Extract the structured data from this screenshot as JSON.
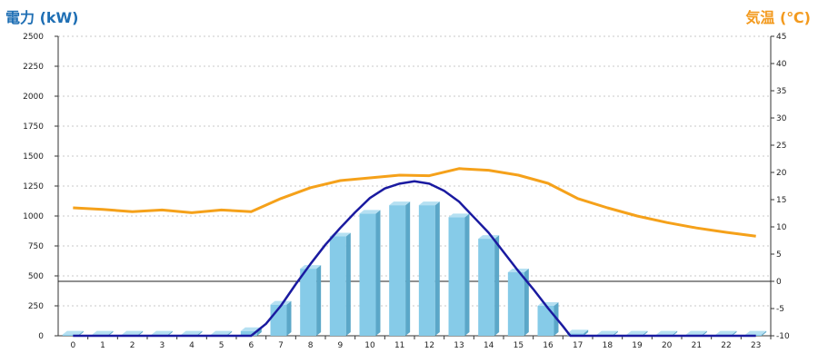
{
  "left_axis_title": "電力 (kW)",
  "right_axis_title": "気温 (℃)",
  "chart_data": {
    "type": "bar",
    "categories": [
      "0",
      "1",
      "2",
      "3",
      "4",
      "5",
      "6",
      "7",
      "8",
      "9",
      "10",
      "11",
      "12",
      "13",
      "14",
      "15",
      "16",
      "17",
      "18",
      "19",
      "20",
      "21",
      "22",
      "23"
    ],
    "ylim_left": [
      0,
      2500
    ],
    "ylim_right": [
      -10,
      45
    ],
    "left_ticks": [
      0,
      250,
      500,
      750,
      1000,
      1250,
      1500,
      1750,
      2000,
      2250,
      2500
    ],
    "right_ticks": [
      -10,
      -5,
      0,
      5,
      10,
      15,
      20,
      25,
      30,
      35,
      40,
      45
    ],
    "grid": true,
    "colors": {
      "bar_front": "#86cbe8",
      "bar_side": "#5ba7c8",
      "bar_top": "#b5e0f2",
      "power_curve": "#1a1aa0",
      "temperature": "#f5a11a",
      "left_title": "#1f6fb4",
      "right_title": "#f39a1e"
    },
    "series": [
      {
        "axis": "left",
        "type": "bar",
        "values": [
          10,
          10,
          10,
          10,
          10,
          10,
          40,
          260,
          560,
          830,
          1020,
          1090,
          1090,
          990,
          810,
          530,
          250,
          20,
          10,
          10,
          10,
          10,
          10,
          10
        ]
      },
      {
        "axis": "left",
        "type": "line",
        "x": [
          6,
          6.5,
          7,
          7.5,
          8,
          8.5,
          9,
          9.5,
          10,
          10.5,
          11,
          11.5,
          12,
          12.5,
          13,
          13.5,
          14,
          14.5,
          15,
          15.5,
          16,
          16.5,
          16.75
        ],
        "values": [
          0,
          100,
          250,
          430,
          600,
          760,
          900,
          1030,
          1150,
          1230,
          1270,
          1290,
          1270,
          1210,
          1120,
          990,
          860,
          700,
          540,
          390,
          230,
          80,
          0
        ]
      },
      {
        "axis": "right",
        "type": "line",
        "values": [
          13.5,
          13.2,
          12.8,
          13.1,
          12.6,
          13.1,
          12.8,
          15.2,
          17.2,
          18.5,
          19.0,
          19.5,
          19.4,
          20.7,
          20.4,
          19.5,
          18.0,
          15.2,
          13.5,
          12.0,
          10.8,
          9.8,
          9.0,
          8.3
        ]
      }
    ]
  }
}
